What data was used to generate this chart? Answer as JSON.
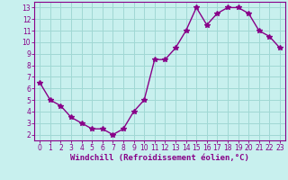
{
  "x": [
    0,
    1,
    2,
    3,
    4,
    5,
    6,
    7,
    8,
    9,
    10,
    11,
    12,
    13,
    14,
    15,
    16,
    17,
    18,
    19,
    20,
    21,
    22,
    23
  ],
  "y": [
    6.5,
    5.0,
    4.5,
    3.5,
    3.0,
    2.5,
    2.5,
    2.0,
    2.5,
    4.0,
    5.0,
    8.5,
    8.5,
    9.5,
    11.0,
    13.0,
    11.5,
    12.5,
    13.0,
    13.0,
    12.5,
    11.0,
    10.5,
    9.5
  ],
  "line_color": "#880088",
  "marker": "*",
  "marker_size": 4,
  "bg_color": "#c8f0ee",
  "grid_color": "#a0d8d4",
  "xlabel": "Windchill (Refroidissement éolien,°C)",
  "xlim": [
    -0.5,
    23.5
  ],
  "ylim": [
    1.5,
    13.5
  ],
  "yticks": [
    2,
    3,
    4,
    5,
    6,
    7,
    8,
    9,
    10,
    11,
    12,
    13
  ],
  "xticks": [
    0,
    1,
    2,
    3,
    4,
    5,
    6,
    7,
    8,
    9,
    10,
    11,
    12,
    13,
    14,
    15,
    16,
    17,
    18,
    19,
    20,
    21,
    22,
    23
  ],
  "tick_fontsize": 5.5,
  "xlabel_fontsize": 6.5,
  "axis_color": "#880088",
  "line_width": 1.0
}
